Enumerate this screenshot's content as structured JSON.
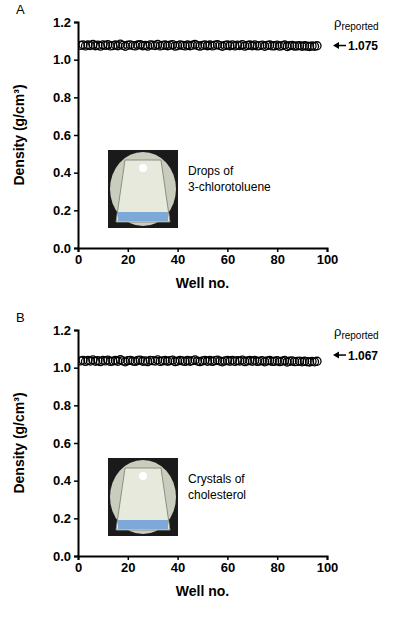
{
  "chart_data": [
    {
      "type": "scatter",
      "panel_label": "A",
      "x_label": "Well no.",
      "y_label": "Density (g/cm³)",
      "x": [
        1,
        2,
        3,
        4,
        5,
        6,
        7,
        8,
        9,
        10,
        11,
        12,
        13,
        14,
        15,
        16,
        17,
        18,
        19,
        20,
        21,
        22,
        23,
        24,
        25,
        26,
        27,
        28,
        29,
        30,
        31,
        32,
        33,
        34,
        35,
        36,
        37,
        38,
        39,
        40,
        41,
        42,
        43,
        44,
        45,
        46,
        47,
        48,
        49,
        50,
        51,
        52,
        53,
        54,
        55,
        56,
        57,
        58,
        59,
        60,
        61,
        62,
        63,
        64,
        65,
        66,
        67,
        68,
        69,
        70,
        71,
        72,
        73,
        74,
        75,
        76,
        77,
        78,
        79,
        80,
        81,
        82,
        83,
        84,
        85,
        86,
        87,
        88,
        89,
        90,
        91,
        92,
        93,
        94,
        95,
        96
      ],
      "values": [
        1.076,
        1.079,
        1.073,
        1.078,
        1.075,
        1.081,
        1.074,
        1.077,
        1.072,
        1.079,
        1.076,
        1.08,
        1.073,
        1.075,
        1.078,
        1.074,
        1.082,
        1.076,
        1.071,
        1.077,
        1.079,
        1.075,
        1.073,
        1.078,
        1.08,
        1.074,
        1.076,
        1.072,
        1.079,
        1.077,
        1.075,
        1.081,
        1.073,
        1.076,
        1.078,
        1.074,
        1.077,
        1.08,
        1.072,
        1.075,
        1.079,
        1.076,
        1.073,
        1.078,
        1.074,
        1.077,
        1.081,
        1.075,
        1.072,
        1.076,
        1.079,
        1.074,
        1.078,
        1.073,
        1.077,
        1.08,
        1.075,
        1.071,
        1.076,
        1.078,
        1.074,
        1.079,
        1.073,
        1.077,
        1.075,
        1.08,
        1.072,
        1.076,
        1.078,
        1.074,
        1.079,
        1.073,
        1.075,
        1.077,
        1.071,
        1.076,
        1.078,
        1.073,
        1.074,
        1.077,
        1.072,
        1.075,
        1.078,
        1.07,
        1.074,
        1.076,
        1.072,
        1.073,
        1.075,
        1.071,
        1.074,
        1.072,
        1.07,
        1.073,
        1.071,
        1.074
      ],
      "xlim": [
        0,
        100
      ],
      "xticks": [
        0,
        20,
        40,
        60,
        80,
        100
      ],
      "ylim": [
        0,
        1.2
      ],
      "yticks": [
        {
          "value": 0,
          "label": "0.0"
        },
        0.2,
        0.4,
        0.6,
        0.8,
        {
          "value": 1,
          "label": "1.0"
        },
        1.2
      ],
      "marker": "open-circle",
      "color": "#000000",
      "reference": {
        "symbol": "ρ",
        "subscript": "reported",
        "value": 1.075
      },
      "inset_label": [
        "Drops of",
        "3-chlorotoluene"
      ]
    },
    {
      "type": "scatter",
      "panel_label": "B",
      "x_label": "Well no.",
      "y_label": "Density (g/cm³)",
      "x": [
        1,
        2,
        3,
        4,
        5,
        6,
        7,
        8,
        9,
        10,
        11,
        12,
        13,
        14,
        15,
        16,
        17,
        18,
        19,
        20,
        21,
        22,
        23,
        24,
        25,
        26,
        27,
        28,
        29,
        30,
        31,
        32,
        33,
        34,
        35,
        36,
        37,
        38,
        39,
        40,
        41,
        42,
        43,
        44,
        45,
        46,
        47,
        48,
        49,
        50,
        51,
        52,
        53,
        54,
        55,
        56,
        57,
        58,
        59,
        60,
        61,
        62,
        63,
        64,
        65,
        66,
        67,
        68,
        69,
        70,
        71,
        72,
        73,
        74,
        75,
        76,
        77,
        78,
        79,
        80,
        81,
        82,
        83,
        84,
        85,
        86,
        87,
        88,
        89,
        90,
        91,
        92,
        93,
        94,
        95,
        96
      ],
      "values": [
        1.036,
        1.039,
        1.033,
        1.038,
        1.035,
        1.041,
        1.034,
        1.037,
        1.032,
        1.039,
        1.036,
        1.04,
        1.033,
        1.035,
        1.038,
        1.034,
        1.042,
        1.036,
        1.031,
        1.037,
        1.039,
        1.035,
        1.033,
        1.038,
        1.04,
        1.034,
        1.036,
        1.032,
        1.039,
        1.037,
        1.035,
        1.041,
        1.033,
        1.036,
        1.038,
        1.034,
        1.037,
        1.04,
        1.032,
        1.035,
        1.039,
        1.036,
        1.033,
        1.038,
        1.034,
        1.037,
        1.041,
        1.035,
        1.032,
        1.036,
        1.039,
        1.034,
        1.038,
        1.033,
        1.037,
        1.04,
        1.035,
        1.031,
        1.036,
        1.038,
        1.034,
        1.039,
        1.033,
        1.037,
        1.035,
        1.04,
        1.032,
        1.036,
        1.038,
        1.034,
        1.039,
        1.033,
        1.035,
        1.037,
        1.031,
        1.036,
        1.038,
        1.033,
        1.034,
        1.037,
        1.032,
        1.035,
        1.038,
        1.03,
        1.034,
        1.036,
        1.032,
        1.033,
        1.035,
        1.031,
        1.034,
        1.032,
        1.03,
        1.033,
        1.031,
        1.034
      ],
      "xlim": [
        0,
        100
      ],
      "xticks": [
        0,
        20,
        40,
        60,
        80,
        100
      ],
      "ylim": [
        0,
        1.2
      ],
      "yticks": [
        {
          "value": 0,
          "label": "0.0"
        },
        0.2,
        0.4,
        0.6,
        0.8,
        {
          "value": 1,
          "label": "1.0"
        },
        1.2
      ],
      "marker": "open-circle",
      "color": "#000000",
      "reference": {
        "symbol": "ρ",
        "subscript": "reported",
        "value": 1.067
      },
      "inset_label": [
        "Crystals of",
        "cholesterol"
      ]
    }
  ]
}
